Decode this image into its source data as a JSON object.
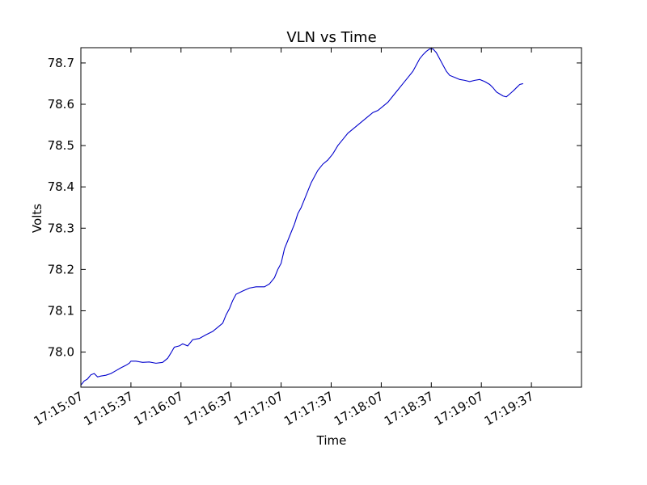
{
  "chart_data": {
    "type": "line",
    "title": "VLN vs Time",
    "xlabel": "Time",
    "ylabel": "Volts",
    "xlim_seconds": [
      0,
      300
    ],
    "ylim": [
      77.915,
      78.737
    ],
    "grid": false,
    "yticks": [
      {
        "value": 78.0,
        "label": "78.0"
      },
      {
        "value": 78.1,
        "label": "78.1"
      },
      {
        "value": 78.2,
        "label": "78.2"
      },
      {
        "value": 78.3,
        "label": "78.3"
      },
      {
        "value": 78.4,
        "label": "78.4"
      },
      {
        "value": 78.5,
        "label": "78.5"
      },
      {
        "value": 78.6,
        "label": "78.6"
      },
      {
        "value": 78.7,
        "label": "78.7"
      }
    ],
    "xticks": [
      {
        "t": 0,
        "label": "17:15:07"
      },
      {
        "t": 30,
        "label": "17:15:37"
      },
      {
        "t": 60,
        "label": "17:16:07"
      },
      {
        "t": 90,
        "label": "17:16:37"
      },
      {
        "t": 120,
        "label": "17:17:07"
      },
      {
        "t": 150,
        "label": "17:17:37"
      },
      {
        "t": 180,
        "label": "17:18:07"
      },
      {
        "t": 210,
        "label": "17:18:37"
      },
      {
        "t": 240,
        "label": "17:19:07"
      },
      {
        "t": 270,
        "label": "17:19:37"
      }
    ],
    "series": [
      {
        "color": "#0000cc",
        "points": [
          [
            0,
            77.92
          ],
          [
            2,
            77.93
          ],
          [
            4,
            77.935
          ],
          [
            6,
            77.945
          ],
          [
            8,
            77.948
          ],
          [
            10,
            77.94
          ],
          [
            12,
            77.942
          ],
          [
            15,
            77.944
          ],
          [
            18,
            77.948
          ],
          [
            21,
            77.955
          ],
          [
            24,
            77.962
          ],
          [
            27,
            77.968
          ],
          [
            29,
            77.973
          ],
          [
            30,
            77.978
          ],
          [
            33,
            77.978
          ],
          [
            37,
            77.975
          ],
          [
            41,
            77.976
          ],
          [
            45,
            77.973
          ],
          [
            49,
            77.975
          ],
          [
            52,
            77.985
          ],
          [
            54,
            77.998
          ],
          [
            56,
            78.012
          ],
          [
            59,
            78.015
          ],
          [
            61,
            78.02
          ],
          [
            64,
            78.015
          ],
          [
            67,
            78.03
          ],
          [
            71,
            78.033
          ],
          [
            75,
            78.042
          ],
          [
            79,
            78.05
          ],
          [
            82,
            78.06
          ],
          [
            85,
            78.07
          ],
          [
            87,
            78.09
          ],
          [
            89,
            78.105
          ],
          [
            91,
            78.125
          ],
          [
            93,
            78.14
          ],
          [
            97,
            78.148
          ],
          [
            101,
            78.155
          ],
          [
            105,
            78.158
          ],
          [
            110,
            78.158
          ],
          [
            113,
            78.165
          ],
          [
            116,
            78.18
          ],
          [
            118,
            78.2
          ],
          [
            120,
            78.215
          ],
          [
            122,
            78.25
          ],
          [
            124,
            78.27
          ],
          [
            126,
            78.29
          ],
          [
            128,
            78.31
          ],
          [
            130,
            78.335
          ],
          [
            132,
            78.35
          ],
          [
            134,
            78.37
          ],
          [
            136,
            78.39
          ],
          [
            138,
            78.41
          ],
          [
            140,
            78.425
          ],
          [
            142,
            78.44
          ],
          [
            145,
            78.455
          ],
          [
            148,
            78.465
          ],
          [
            151,
            78.48
          ],
          [
            154,
            78.5
          ],
          [
            157,
            78.515
          ],
          [
            160,
            78.53
          ],
          [
            163,
            78.54
          ],
          [
            166,
            78.55
          ],
          [
            169,
            78.56
          ],
          [
            172,
            78.57
          ],
          [
            175,
            78.58
          ],
          [
            178,
            78.585
          ],
          [
            181,
            78.595
          ],
          [
            184,
            78.605
          ],
          [
            187,
            78.62
          ],
          [
            190,
            78.635
          ],
          [
            193,
            78.65
          ],
          [
            196,
            78.665
          ],
          [
            199,
            78.68
          ],
          [
            201,
            78.695
          ],
          [
            203,
            78.71
          ],
          [
            205,
            78.72
          ],
          [
            207,
            78.728
          ],
          [
            209,
            78.734
          ],
          [
            211,
            78.734
          ],
          [
            213,
            78.725
          ],
          [
            215,
            78.71
          ],
          [
            217,
            78.695
          ],
          [
            219,
            78.68
          ],
          [
            221,
            78.67
          ],
          [
            224,
            78.665
          ],
          [
            227,
            78.66
          ],
          [
            230,
            78.658
          ],
          [
            233,
            78.655
          ],
          [
            236,
            78.658
          ],
          [
            239,
            78.66
          ],
          [
            242,
            78.655
          ],
          [
            245,
            78.648
          ],
          [
            247,
            78.64
          ],
          [
            249,
            78.63
          ],
          [
            251,
            78.625
          ],
          [
            253,
            78.62
          ],
          [
            255,
            78.618
          ],
          [
            257,
            78.625
          ],
          [
            259,
            78.632
          ],
          [
            261,
            78.64
          ],
          [
            263,
            78.648
          ],
          [
            265,
            78.65
          ]
        ]
      }
    ]
  }
}
